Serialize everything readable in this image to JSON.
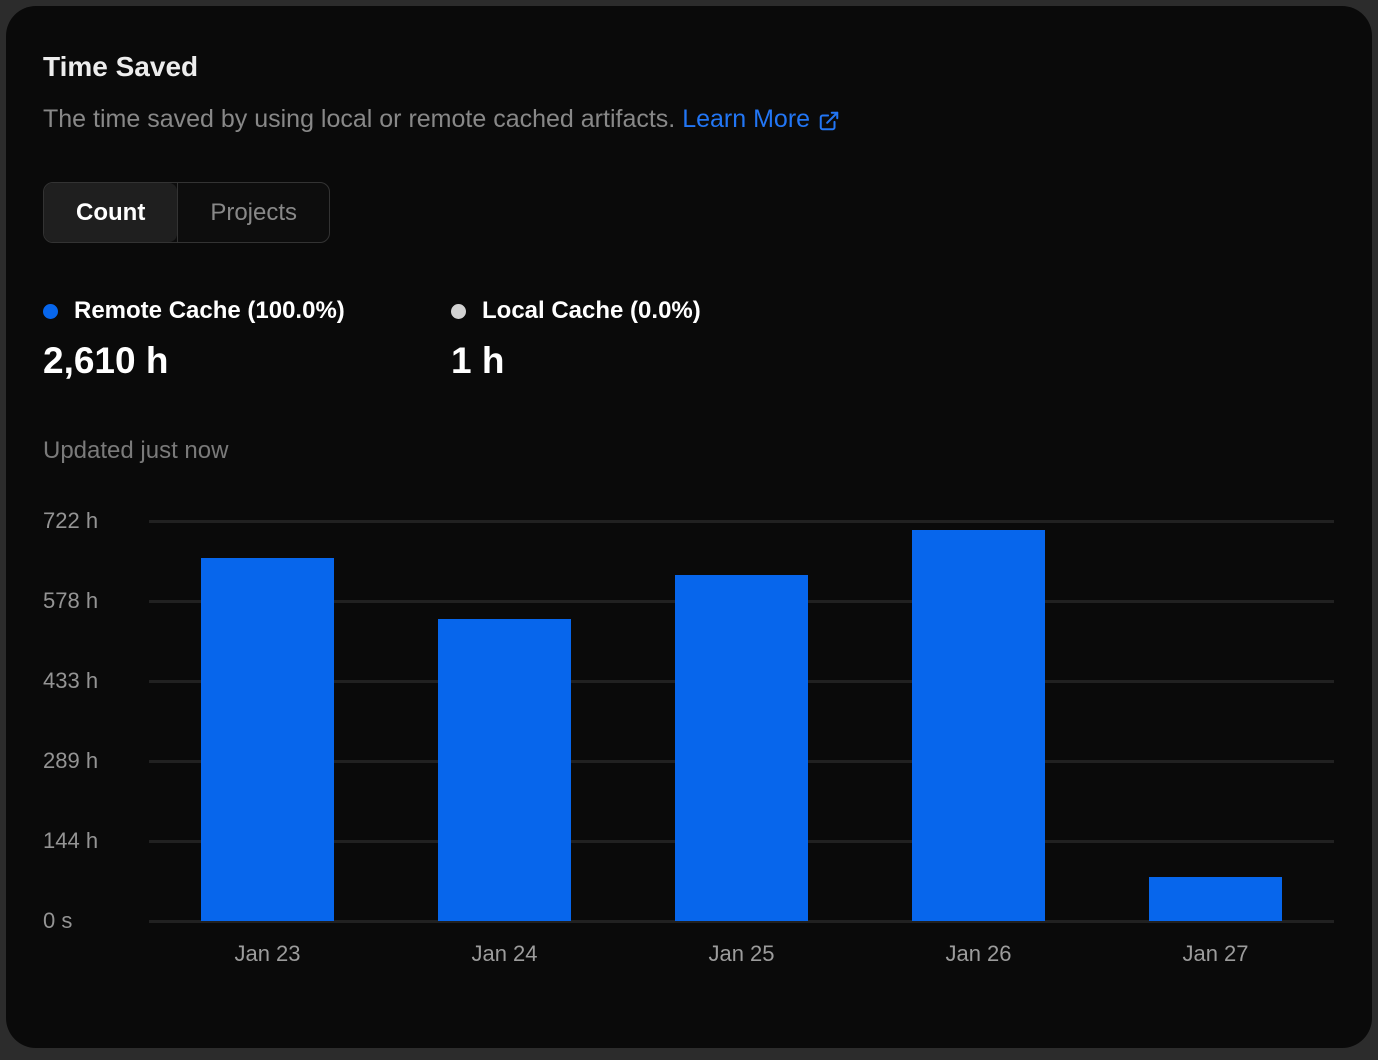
{
  "card": {
    "title": "Time Saved",
    "subtitle": "The time saved by using local or remote cached artifacts.",
    "learn_more_label": "Learn More",
    "toggle": {
      "options": [
        {
          "label": "Count",
          "active": true
        },
        {
          "label": "Projects",
          "active": false
        }
      ]
    },
    "legend": [
      {
        "label": "Remote Cache (100.0%)",
        "value": "2,610 h",
        "color": "#0766ec"
      },
      {
        "label": "Local Cache (0.0%)",
        "value": "1 h",
        "color": "#d2d2d2"
      }
    ],
    "updated_text": "Updated just now"
  },
  "colors": {
    "card_background": "#0a0a0a",
    "page_background": "#2c2c2c",
    "accent_blue": "#0766ec",
    "link_blue": "#2276f5",
    "gridline": "#212121",
    "muted_text": "#888888"
  },
  "chart_data": {
    "type": "bar",
    "title": "Time Saved",
    "xlabel": "",
    "ylabel": "",
    "categories": [
      "Jan 23",
      "Jan 24",
      "Jan 25",
      "Jan 26",
      "Jan 27"
    ],
    "series": [
      {
        "name": "Remote Cache",
        "values": [
          655,
          545,
          625,
          705,
          80
        ]
      }
    ],
    "units": "h",
    "ylim": [
      0,
      722
    ],
    "y_ticks": [
      "722 h",
      "578 h",
      "433 h",
      "289 h",
      "144 h",
      "0 s"
    ],
    "grid": "horizontal",
    "legend_position": "top-left",
    "bar_color": "#0766ec"
  }
}
